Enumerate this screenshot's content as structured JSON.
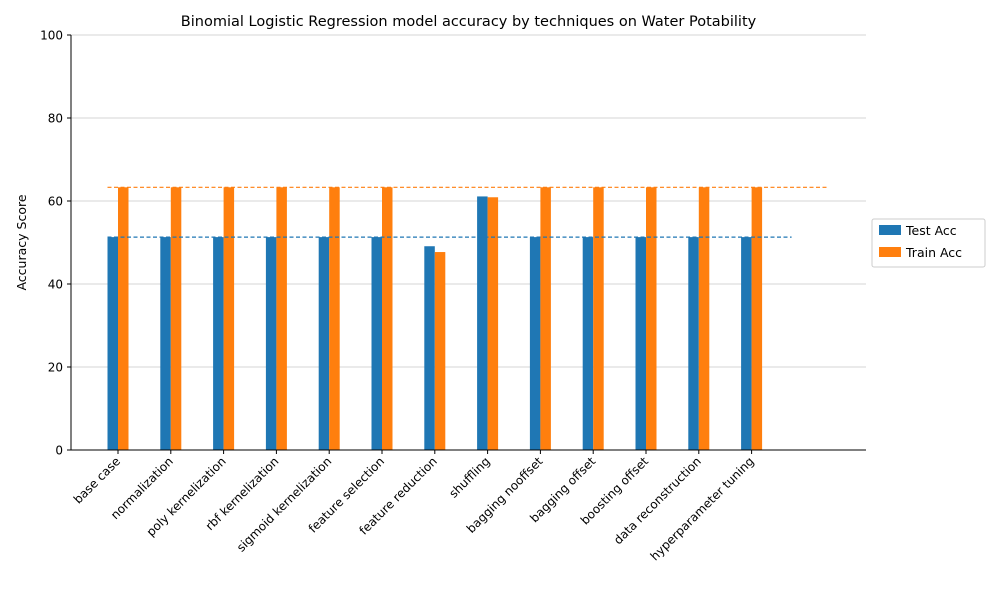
{
  "chart_data": {
    "type": "bar",
    "title": "Binomial Logistic Regression model accuracy by techniques on Water Potability",
    "xlabel": "",
    "ylabel": "Accuracy Score",
    "ylim": [
      0,
      100
    ],
    "yticks": [
      0,
      20,
      40,
      60,
      80,
      100
    ],
    "grid": "horizontal",
    "legend_position": "right",
    "categories": [
      "base case",
      "normalization",
      "poly kernelization",
      "rbf kernelization",
      "sigmoid kernelization",
      "feature selection",
      "feature reduction",
      "shuffling",
      "bagging nooffset",
      "bagging offset",
      "boosting offset",
      "data reconstruction",
      "hyperparameter tuning"
    ],
    "series": [
      {
        "name": "Test Acc",
        "color": "#1f77b4",
        "values": [
          51.3,
          51.3,
          51.3,
          51.3,
          51.3,
          51.3,
          49.1,
          61.1,
          51.3,
          51.3,
          51.3,
          51.3,
          51.3
        ],
        "reference_line": 51.3
      },
      {
        "name": "Train Acc",
        "color": "#ff7f0e",
        "values": [
          63.3,
          63.3,
          63.3,
          63.3,
          63.3,
          63.3,
          47.7,
          60.9,
          63.3,
          63.3,
          63.3,
          63.3,
          63.3
        ],
        "reference_line": 63.3
      }
    ]
  }
}
